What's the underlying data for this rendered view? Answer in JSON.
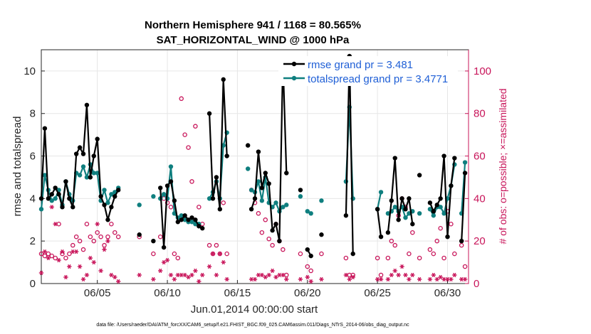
{
  "chart_data": {
    "type": "line",
    "title": "Northern Hemisphere 941 / 1168 = 80.565%",
    "subtitle": "SAT_HORIZONTAL_WIND @ 1000 hPa",
    "xlabel": "Jun.01,2014 00:00:00 start",
    "ylabel_left": "rmse and totalspread",
    "ylabel_right": "# of obs: o=possible; ×=assimilated",
    "xlim": [
      1,
      31.5
    ],
    "ylim_left": [
      0,
      11
    ],
    "ylim_right": [
      0,
      110
    ],
    "x_ticks": [
      5,
      10,
      15,
      20,
      25,
      30
    ],
    "x_tick_labels": [
      "06/05",
      "06/10",
      "06/15",
      "06/20",
      "06/25",
      "06/30"
    ],
    "y_left_ticks": [
      "0",
      "2",
      "4",
      "6",
      "8",
      "10"
    ],
    "y_right_ticks": [
      "0",
      "20",
      "40",
      "60",
      "80",
      "100"
    ],
    "grid": true,
    "legend": [
      "rmse grand pr = 3.481",
      "totalspread grand pr = 3.4771"
    ],
    "legend_position": "top-right",
    "footnote": "data file: /Users/raeder/DAI/ATM_forcXX/CAM6_setup/f.e21.FHIST_BGC.f09_025.CAM6assim.011/Diags_NTrS_2014-06/obs_diag_output.nc",
    "colors": {
      "rmse": "#000000",
      "spread": "#0f7f7f",
      "obs": "#c8155a",
      "legend_text": "#1f5fd6"
    },
    "series": [
      {
        "name": "rmse",
        "segments": [
          [
            [
              1.0,
              4.0
            ],
            [
              1.25,
              7.3
            ],
            [
              1.5,
              4.0
            ],
            [
              1.75,
              4.2
            ],
            [
              2.0,
              4.5
            ],
            [
              2.25,
              4.2
            ],
            [
              2.5,
              3.6
            ],
            [
              2.75,
              4.8
            ],
            [
              3.0,
              4.0
            ],
            [
              3.25,
              3.6
            ],
            [
              3.5,
              6.1
            ],
            [
              3.75,
              6.4
            ],
            [
              4.0,
              6.1
            ],
            [
              4.25,
              8.4
            ],
            [
              4.5,
              5.0
            ],
            [
              4.75,
              6.0
            ],
            [
              5.0,
              6.8
            ],
            [
              5.25,
              4.1
            ],
            [
              5.5,
              3.7
            ],
            [
              5.75,
              3.0
            ],
            [
              6.0,
              3.6
            ],
            [
              6.25,
              4.1
            ],
            [
              6.5,
              4.4
            ]
          ],
          [
            [
              8.0,
              2.3
            ]
          ],
          [
            [
              9.0,
              2.0
            ]
          ],
          [
            [
              9.5,
              4.5
            ],
            [
              9.75,
              1.7
            ],
            [
              10.0,
              4.6
            ],
            [
              10.25,
              4.8
            ],
            [
              10.5,
              3.9
            ],
            [
              10.75,
              2.9
            ],
            [
              11.0,
              3.0
            ],
            [
              11.25,
              3.2
            ],
            [
              11.5,
              3.0
            ],
            [
              11.75,
              3.1
            ],
            [
              12.0,
              3.0
            ],
            [
              12.25,
              2.7
            ],
            [
              12.5,
              2.6
            ]
          ],
          [
            [
              13.0,
              8.0
            ],
            [
              13.25,
              4.0
            ],
            [
              13.5,
              5.0
            ],
            [
              13.75,
              3.5
            ],
            [
              14.0,
              9.6
            ],
            [
              14.25,
              6.0
            ]
          ],
          [
            [
              15.75,
              6.5
            ]
          ],
          [
            [
              16.0,
              3.5
            ],
            [
              16.25,
              4.0
            ],
            [
              16.5,
              6.2
            ],
            [
              16.75,
              4.5
            ],
            [
              17.0,
              5.2
            ],
            [
              17.25,
              4.7
            ],
            [
              17.5,
              2.5
            ],
            [
              17.75,
              2.8
            ],
            [
              18.0,
              2.0
            ],
            [
              18.25,
              10.5
            ],
            [
              18.5,
              5.2
            ]
          ],
          [
            [
              19.5,
              4.4
            ]
          ],
          [
            [
              20.0,
              1.6
            ],
            [
              20.25,
              1.3
            ]
          ],
          [
            [
              21.0,
              2.3
            ]
          ],
          [
            [
              22.75,
              3.2
            ],
            [
              23.0,
              10.7
            ],
            [
              23.25,
              1.4
            ]
          ],
          [
            [
              25.0,
              3.5
            ],
            [
              25.25,
              2.2
            ]
          ],
          [
            [
              25.75,
              2.4
            ],
            [
              26.0,
              3.9
            ],
            [
              26.25,
              5.9
            ],
            [
              26.5,
              3.0
            ],
            [
              26.75,
              4.0
            ],
            [
              27.0,
              3.5
            ],
            [
              27.25,
              4.0
            ],
            [
              27.5,
              2.8
            ]
          ],
          [
            [
              28.0,
              5.1
            ]
          ],
          [
            [
              28.75,
              3.8
            ],
            [
              29.0,
              3.4
            ],
            [
              29.25,
              3.7
            ],
            [
              29.5,
              4.0
            ],
            [
              29.75,
              6.0
            ],
            [
              30.0,
              2.2
            ],
            [
              30.25,
              4.6
            ],
            [
              30.5,
              5.9
            ]
          ],
          [
            [
              31.0,
              2.0
            ],
            [
              31.25,
              5.2
            ]
          ]
        ]
      },
      {
        "name": "totalspread",
        "segments": [
          [
            [
              1.0,
              3.5
            ],
            [
              1.25,
              5.1
            ],
            [
              1.5,
              4.4
            ],
            [
              1.75,
              3.9
            ],
            [
              2.0,
              4.0
            ],
            [
              2.25,
              4.4
            ],
            [
              2.5,
              3.7
            ],
            [
              2.75,
              4.8
            ],
            [
              3.0,
              4.2
            ],
            [
              3.25,
              3.9
            ],
            [
              3.5,
              5.2
            ],
            [
              3.75,
              5.1
            ],
            [
              4.0,
              5.5
            ],
            [
              4.25,
              5.0
            ],
            [
              4.5,
              5.6
            ],
            [
              4.75,
              5.2
            ],
            [
              5.0,
              5.2
            ],
            [
              5.25,
              3.9
            ],
            [
              5.5,
              4.4
            ],
            [
              5.75,
              3.8
            ],
            [
              6.0,
              4.2
            ],
            [
              6.25,
              4.3
            ],
            [
              6.5,
              4.5
            ]
          ],
          [
            [
              8.0,
              3.7
            ]
          ],
          [
            [
              9.0,
              4.1
            ]
          ],
          [
            [
              9.5,
              4.0
            ],
            [
              9.75,
              4.2
            ],
            [
              10.0,
              4.0
            ],
            [
              10.25,
              5.5
            ],
            [
              10.5,
              3.3
            ],
            [
              10.75,
              3.1
            ],
            [
              11.0,
              3.2
            ],
            [
              11.25,
              3.0
            ],
            [
              11.5,
              2.9
            ],
            [
              11.75,
              2.9
            ],
            [
              12.0,
              2.8
            ],
            [
              12.25,
              2.8
            ]
          ],
          [
            [
              13.0,
              4.0
            ],
            [
              13.25,
              4.3
            ],
            [
              13.5,
              4.8
            ],
            [
              13.75,
              4.0
            ],
            [
              14.0,
              6.5
            ],
            [
              14.25,
              7.1
            ]
          ],
          [
            [
              15.75,
              5.4
            ]
          ],
          [
            [
              16.0,
              4.4
            ],
            [
              16.25,
              4.3
            ],
            [
              16.5,
              4.8
            ],
            [
              16.75,
              3.9
            ],
            [
              17.0,
              5.0
            ],
            [
              17.25,
              3.8
            ],
            [
              17.5,
              3.6
            ],
            [
              17.75,
              3.8
            ],
            [
              18.0,
              3.4
            ],
            [
              18.25,
              3.6
            ],
            [
              18.5,
              3.7
            ]
          ],
          [
            [
              19.5,
              4.1
            ]
          ],
          [
            [
              20.0,
              3.4
            ],
            [
              20.25,
              3.3
            ]
          ],
          [
            [
              21.0,
              3.9
            ]
          ],
          [
            [
              22.75,
              4.8
            ],
            [
              23.0,
              8.3
            ],
            [
              23.25,
              4.0
            ]
          ],
          [
            [
              25.0,
              3.5
            ],
            [
              25.25,
              4.3
            ]
          ],
          [
            [
              25.75,
              3.3
            ],
            [
              26.0,
              3.4
            ],
            [
              26.25,
              3.6
            ],
            [
              26.5,
              3.4
            ],
            [
              26.75,
              3.6
            ],
            [
              27.0,
              3.1
            ],
            [
              27.25,
              3.3
            ],
            [
              27.5,
              3.4
            ]
          ],
          [
            [
              28.0,
              3.3
            ]
          ],
          [
            [
              28.75,
              3.5
            ],
            [
              29.0,
              3.2
            ],
            [
              29.25,
              3.6
            ],
            [
              29.5,
              3.6
            ],
            [
              29.75,
              3.3
            ],
            [
              30.0,
              4.0
            ],
            [
              30.25,
              4.6
            ],
            [
              30.5,
              5.6
            ]
          ],
          [
            [
              31.0,
              3.3
            ],
            [
              31.25,
              5.7
            ]
          ]
        ]
      },
      {
        "name": "obs possible",
        "marker": "circle",
        "x": [
          1.0,
          1.25,
          1.5,
          1.75,
          2.0,
          2.25,
          2.5,
          2.75,
          3.0,
          3.25,
          3.5,
          3.75,
          4.0,
          4.25,
          4.5,
          4.75,
          5.0,
          5.25,
          5.5,
          5.75,
          6.0,
          6.25,
          6.5,
          8.0,
          9.0,
          9.5,
          9.75,
          10.0,
          10.25,
          10.5,
          10.75,
          11.0,
          11.25,
          11.5,
          11.75,
          12.0,
          12.25,
          12.5,
          13.0,
          13.25,
          13.5,
          13.75,
          14.0,
          14.25,
          16.0,
          16.25,
          16.5,
          16.75,
          17.0,
          17.25,
          17.5,
          17.75,
          18.0,
          18.25,
          18.5,
          19.5,
          20.0,
          20.25,
          21.0,
          22.75,
          23.0,
          23.25,
          25.0,
          25.25,
          25.75,
          26.0,
          26.25,
          26.5,
          26.75,
          27.0,
          27.25,
          27.5,
          28.0,
          28.75,
          29.0,
          29.25,
          29.5,
          29.75,
          30.0,
          30.25,
          30.5,
          31.0,
          31.25
        ],
        "values": [
          14,
          13,
          14,
          13,
          12,
          28,
          14,
          12,
          14,
          18,
          22,
          20,
          16,
          28,
          22,
          20,
          24,
          22,
          18,
          22,
          28,
          24,
          22,
          22,
          14,
          22,
          40,
          38,
          36,
          14,
          12,
          87,
          70,
          64,
          48,
          74,
          36,
          28,
          18,
          14,
          18,
          14,
          38,
          14,
          44,
          38,
          33,
          24,
          30,
          21,
          18,
          28,
          20,
          16,
          4,
          14,
          8,
          6,
          14,
          12,
          4,
          4,
          12,
          4,
          12,
          20,
          18,
          32,
          40,
          36,
          14,
          24,
          12,
          16,
          14,
          20,
          26,
          12,
          34,
          28,
          14,
          18,
          8
        ]
      },
      {
        "name": "obs assimilated",
        "marker": "asterisk",
        "x": [
          1.0,
          1.25,
          1.5,
          1.75,
          2.0,
          2.25,
          2.5,
          2.75,
          3.0,
          3.25,
          3.5,
          3.75,
          4.0,
          4.25,
          4.5,
          4.75,
          5.0,
          5.25,
          5.5,
          5.75,
          6.0,
          6.25,
          6.5,
          8.0,
          9.0,
          9.5,
          9.75,
          10.0,
          10.25,
          10.5,
          10.75,
          11.0,
          11.25,
          11.5,
          11.75,
          12.0,
          12.25,
          12.5,
          13.0,
          13.25,
          13.5,
          13.75,
          14.0,
          14.25,
          16.0,
          16.25,
          16.5,
          16.75,
          17.0,
          17.25,
          17.5,
          17.75,
          18.0,
          18.25,
          18.5,
          19.5,
          20.0,
          20.25,
          21.0,
          22.75,
          23.0,
          23.25,
          25.0,
          25.25,
          25.75,
          26.0,
          26.25,
          26.5,
          26.75,
          27.0,
          27.25,
          27.5,
          28.0,
          28.75,
          29.0,
          29.25,
          29.5,
          29.75,
          30.0,
          30.25,
          30.5,
          31.0,
          31.25
        ],
        "values": [
          5,
          15,
          12,
          36,
          28,
          11,
          15,
          3,
          8,
          15,
          15,
          8,
          2,
          4,
          12,
          10,
          28,
          6,
          16,
          20,
          4,
          3,
          1,
          4,
          2,
          6,
          10,
          11,
          4,
          2,
          4,
          4,
          4,
          3,
          4,
          6,
          1,
          4,
          8,
          14,
          4,
          14,
          10,
          2,
          2,
          2,
          4,
          4,
          3,
          4,
          6,
          3,
          4,
          4,
          2,
          2,
          3,
          1,
          2,
          4,
          2,
          3,
          2,
          2,
          2,
          4,
          6,
          4,
          8,
          4,
          2,
          4,
          2,
          2,
          4,
          2,
          3,
          2,
          2,
          2,
          4,
          2,
          2
        ]
      }
    ]
  }
}
